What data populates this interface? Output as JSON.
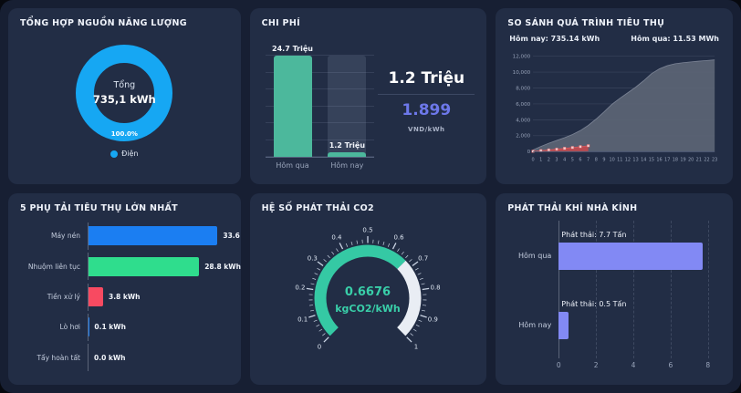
{
  "theme": {
    "page_bg": "#171f33",
    "panel_bg": "#222d45",
    "title_color": "#eef2fa",
    "axis_label_color": "#9aa5bb"
  },
  "panels": {
    "energy": {
      "title": "TỔNG HỢP NGUỒN NĂNG LƯỢNG"
    },
    "cost": {
      "title": "CHI PHÍ",
      "summary": {
        "total": "1.2 Triệu",
        "rate": "1.899",
        "unit": "VND/kWh"
      }
    },
    "compare": {
      "title": "SO SÁNH QUÁ TRÌNH TIÊU THỤ",
      "today_label": "Hôm nay: 735.14 kWh",
      "yesterday_label": "Hôm qua: 11.53 MWh"
    },
    "loads": {
      "title": "5 PHỤ TẢI TIÊU THỤ LỚN NHẤT"
    },
    "gauge": {
      "title": "HỆ SỐ PHÁT THẢI CO2"
    },
    "ghg": {
      "title": "PHÁT THẢI KHÍ NHÀ KÍNH"
    }
  },
  "chart_data": [
    {
      "id": "energy-donut",
      "type": "pie",
      "slices": [
        {
          "label": "Điện",
          "value": 100.0,
          "color": "#16a7f3"
        }
      ],
      "center": {
        "label": "Tổng",
        "value": "735,1 kWh"
      },
      "percent_label": "100.0%"
    },
    {
      "id": "cost-bars",
      "type": "bar",
      "categories": [
        "Hôm qua",
        "Hôm nay"
      ],
      "values": [
        24.7,
        1.2
      ],
      "value_labels": [
        "24.7 Triệu",
        "1.2 Triệu"
      ],
      "ghost": [
        false,
        true
      ],
      "ylim": [
        0,
        24.7
      ],
      "bar_color": "#4cb89c",
      "gridlines": 6
    },
    {
      "id": "consumption-compare",
      "type": "area",
      "x": [
        0,
        1,
        2,
        3,
        4,
        5,
        6,
        7,
        8,
        9,
        10,
        11,
        12,
        13,
        14,
        15,
        16,
        17,
        18,
        19,
        20,
        21,
        22,
        23
      ],
      "series": [
        {
          "name": "Hôm qua",
          "color": "#5c6575",
          "values": [
            200,
            650,
            1050,
            1400,
            1750,
            2150,
            2650,
            3300,
            4100,
            5000,
            5950,
            6700,
            7400,
            8100,
            8900,
            9800,
            10400,
            10800,
            11050,
            11180,
            11280,
            11370,
            11450,
            11530
          ]
        },
        {
          "name": "Hôm nay",
          "color": "#bf4a4f",
          "values": [
            40,
            120,
            210,
            310,
            410,
            510,
            620,
            735
          ]
        }
      ],
      "ylim": [
        0,
        12000
      ],
      "yticks": [
        {
          "v": 0,
          "label": "0"
        },
        {
          "v": 2000,
          "label": "2,000"
        },
        {
          "v": 4000,
          "label": "4,000"
        },
        {
          "v": 6000,
          "label": "6,000"
        },
        {
          "v": 8000,
          "label": "8,000"
        },
        {
          "v": 10000,
          "label": "10,000"
        },
        {
          "v": 12000,
          "label": "12,000"
        }
      ],
      "legend_position": "top"
    },
    {
      "id": "top-loads",
      "type": "bar",
      "orientation": "horizontal",
      "categories": [
        "Máy nén",
        "Nhuộm liên tục",
        "Tiền xử lý",
        "Lò hơi",
        "Tẩy hoàn tất"
      ],
      "values": [
        33.6,
        28.8,
        3.8,
        0.1,
        0.0
      ],
      "value_labels": [
        "33.6 kWh",
        "28.8 kWh",
        "3.8 kWh",
        "0.1 kWh",
        "0.0 kWh"
      ],
      "colors": [
        "#1b7ef2",
        "#2fdd8d",
        "#f84a61",
        "#1b7ef2",
        "#1b7ef2"
      ],
      "xlim": [
        0,
        36.5
      ]
    },
    {
      "id": "co2-gauge",
      "type": "gauge",
      "min": 0,
      "max": 1,
      "value": 0.6676,
      "value_label": "0.6676",
      "unit": "kgCO2/kWh",
      "ticks": [
        "0",
        "0.1",
        "0.2",
        "0.3",
        "0.4",
        "0.5",
        "0.6",
        "0.7",
        "0.8",
        "0.9",
        "1"
      ],
      "fill_color": "#35c9a4",
      "track_color": "#e9edf4",
      "text_color": "#39cfa9"
    },
    {
      "id": "ghg-bars",
      "type": "bar",
      "orientation": "horizontal",
      "categories": [
        "Hôm qua",
        "Hôm nay"
      ],
      "values": [
        7.7,
        0.5
      ],
      "bar_labels": [
        "Phát thải: 7.7 Tấn",
        "Phát thải: 0.5 Tấn"
      ],
      "xticks": [
        0,
        2,
        4,
        6,
        8
      ],
      "xlim": [
        0,
        8.4
      ],
      "color": "#8289f4"
    }
  ]
}
